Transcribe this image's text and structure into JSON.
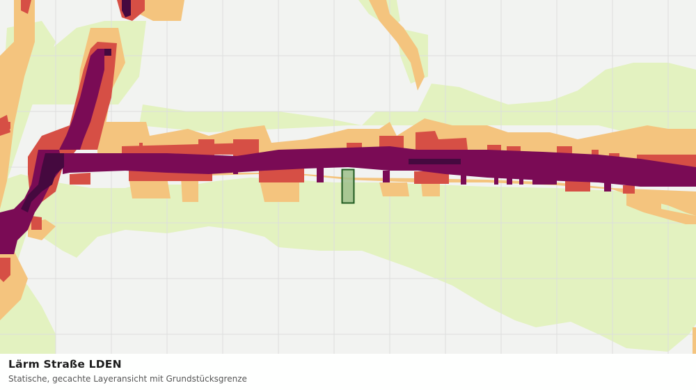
{
  "legend": {
    "title": "Lärm Straße LDEN",
    "subtitle": "Statische, gecachte Layeransicht mit Grundstücksgrenze"
  },
  "colors": {
    "background": "#f2f3f1",
    "grid": "#dddedd",
    "level_1": "#e3f2c0",
    "level_2": "#f4c47e",
    "level_3": "#d64f45",
    "level_4": "#7a0b55",
    "level_5": "#45093f",
    "parcel_fill": "#9dc08b",
    "parcel_stroke": "#1f5a1f"
  }
}
